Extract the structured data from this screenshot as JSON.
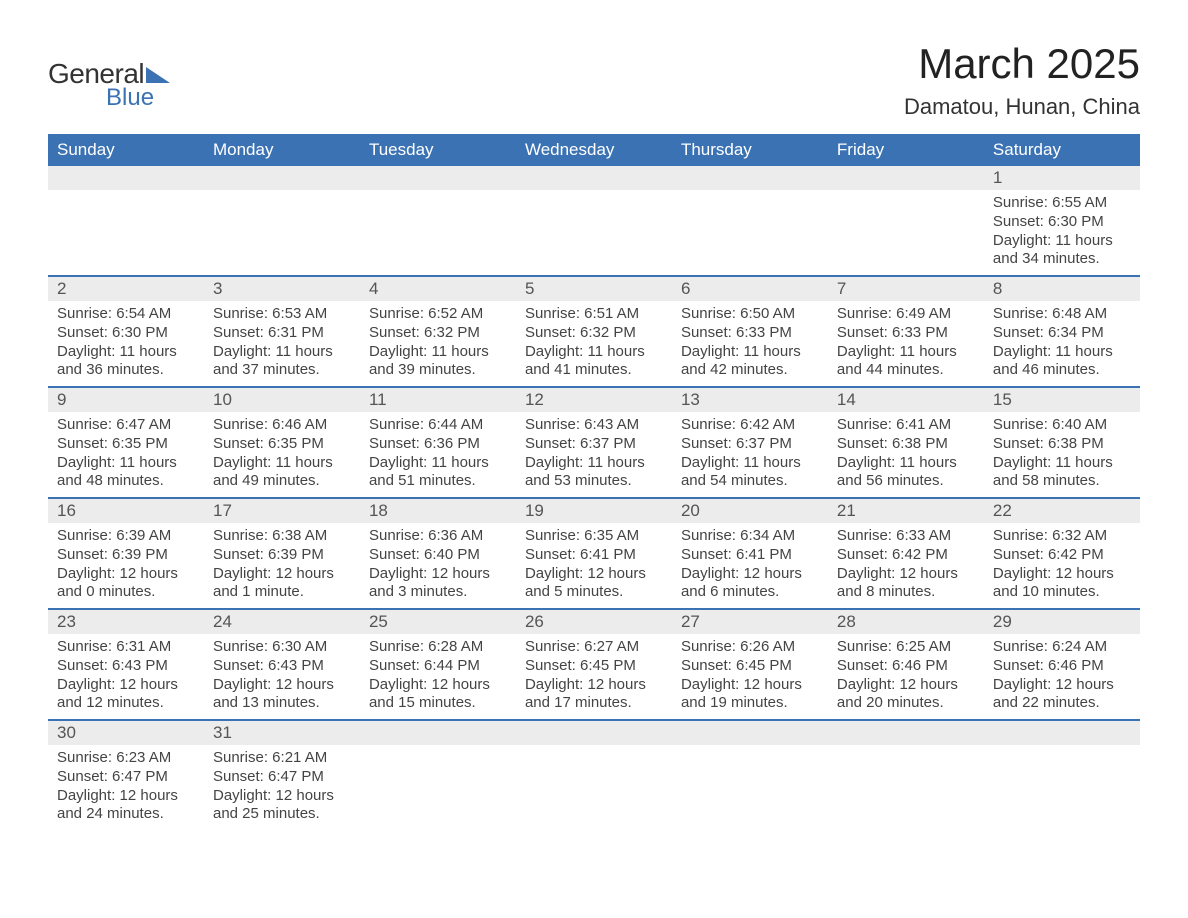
{
  "brand": {
    "word1": "General",
    "word2": "Blue"
  },
  "title": "March 2025",
  "location": "Damatou, Hunan, China",
  "colors": {
    "header_bg": "#3b72b3",
    "header_text": "#ffffff",
    "daynum_bg": "#ececec",
    "body_text": "#444444",
    "row_divider": "#3b72b3",
    "page_bg": "#ffffff"
  },
  "typography": {
    "title_fontsize": 42,
    "location_fontsize": 22,
    "header_fontsize": 17,
    "daynum_fontsize": 17,
    "body_fontsize": 15,
    "font_family": "Arial"
  },
  "layout": {
    "columns": 7,
    "rows": 6
  },
  "weekdays": [
    "Sunday",
    "Monday",
    "Tuesday",
    "Wednesday",
    "Thursday",
    "Friday",
    "Saturday"
  ],
  "labels": {
    "sunrise": "Sunrise:",
    "sunset": "Sunset:",
    "daylight": "Daylight:"
  },
  "weeks": [
    [
      null,
      null,
      null,
      null,
      null,
      null,
      {
        "n": "1",
        "sunrise": "6:55 AM",
        "sunset": "6:30 PM",
        "daylight": "11 hours and 34 minutes."
      }
    ],
    [
      {
        "n": "2",
        "sunrise": "6:54 AM",
        "sunset": "6:30 PM",
        "daylight": "11 hours and 36 minutes."
      },
      {
        "n": "3",
        "sunrise": "6:53 AM",
        "sunset": "6:31 PM",
        "daylight": "11 hours and 37 minutes."
      },
      {
        "n": "4",
        "sunrise": "6:52 AM",
        "sunset": "6:32 PM",
        "daylight": "11 hours and 39 minutes."
      },
      {
        "n": "5",
        "sunrise": "6:51 AM",
        "sunset": "6:32 PM",
        "daylight": "11 hours and 41 minutes."
      },
      {
        "n": "6",
        "sunrise": "6:50 AM",
        "sunset": "6:33 PM",
        "daylight": "11 hours and 42 minutes."
      },
      {
        "n": "7",
        "sunrise": "6:49 AM",
        "sunset": "6:33 PM",
        "daylight": "11 hours and 44 minutes."
      },
      {
        "n": "8",
        "sunrise": "6:48 AM",
        "sunset": "6:34 PM",
        "daylight": "11 hours and 46 minutes."
      }
    ],
    [
      {
        "n": "9",
        "sunrise": "6:47 AM",
        "sunset": "6:35 PM",
        "daylight": "11 hours and 48 minutes."
      },
      {
        "n": "10",
        "sunrise": "6:46 AM",
        "sunset": "6:35 PM",
        "daylight": "11 hours and 49 minutes."
      },
      {
        "n": "11",
        "sunrise": "6:44 AM",
        "sunset": "6:36 PM",
        "daylight": "11 hours and 51 minutes."
      },
      {
        "n": "12",
        "sunrise": "6:43 AM",
        "sunset": "6:37 PM",
        "daylight": "11 hours and 53 minutes."
      },
      {
        "n": "13",
        "sunrise": "6:42 AM",
        "sunset": "6:37 PM",
        "daylight": "11 hours and 54 minutes."
      },
      {
        "n": "14",
        "sunrise": "6:41 AM",
        "sunset": "6:38 PM",
        "daylight": "11 hours and 56 minutes."
      },
      {
        "n": "15",
        "sunrise": "6:40 AM",
        "sunset": "6:38 PM",
        "daylight": "11 hours and 58 minutes."
      }
    ],
    [
      {
        "n": "16",
        "sunrise": "6:39 AM",
        "sunset": "6:39 PM",
        "daylight": "12 hours and 0 minutes."
      },
      {
        "n": "17",
        "sunrise": "6:38 AM",
        "sunset": "6:39 PM",
        "daylight": "12 hours and 1 minute."
      },
      {
        "n": "18",
        "sunrise": "6:36 AM",
        "sunset": "6:40 PM",
        "daylight": "12 hours and 3 minutes."
      },
      {
        "n": "19",
        "sunrise": "6:35 AM",
        "sunset": "6:41 PM",
        "daylight": "12 hours and 5 minutes."
      },
      {
        "n": "20",
        "sunrise": "6:34 AM",
        "sunset": "6:41 PM",
        "daylight": "12 hours and 6 minutes."
      },
      {
        "n": "21",
        "sunrise": "6:33 AM",
        "sunset": "6:42 PM",
        "daylight": "12 hours and 8 minutes."
      },
      {
        "n": "22",
        "sunrise": "6:32 AM",
        "sunset": "6:42 PM",
        "daylight": "12 hours and 10 minutes."
      }
    ],
    [
      {
        "n": "23",
        "sunrise": "6:31 AM",
        "sunset": "6:43 PM",
        "daylight": "12 hours and 12 minutes."
      },
      {
        "n": "24",
        "sunrise": "6:30 AM",
        "sunset": "6:43 PM",
        "daylight": "12 hours and 13 minutes."
      },
      {
        "n": "25",
        "sunrise": "6:28 AM",
        "sunset": "6:44 PM",
        "daylight": "12 hours and 15 minutes."
      },
      {
        "n": "26",
        "sunrise": "6:27 AM",
        "sunset": "6:45 PM",
        "daylight": "12 hours and 17 minutes."
      },
      {
        "n": "27",
        "sunrise": "6:26 AM",
        "sunset": "6:45 PM",
        "daylight": "12 hours and 19 minutes."
      },
      {
        "n": "28",
        "sunrise": "6:25 AM",
        "sunset": "6:46 PM",
        "daylight": "12 hours and 20 minutes."
      },
      {
        "n": "29",
        "sunrise": "6:24 AM",
        "sunset": "6:46 PM",
        "daylight": "12 hours and 22 minutes."
      }
    ],
    [
      {
        "n": "30",
        "sunrise": "6:23 AM",
        "sunset": "6:47 PM",
        "daylight": "12 hours and 24 minutes."
      },
      {
        "n": "31",
        "sunrise": "6:21 AM",
        "sunset": "6:47 PM",
        "daylight": "12 hours and 25 minutes."
      },
      null,
      null,
      null,
      null,
      null
    ]
  ]
}
